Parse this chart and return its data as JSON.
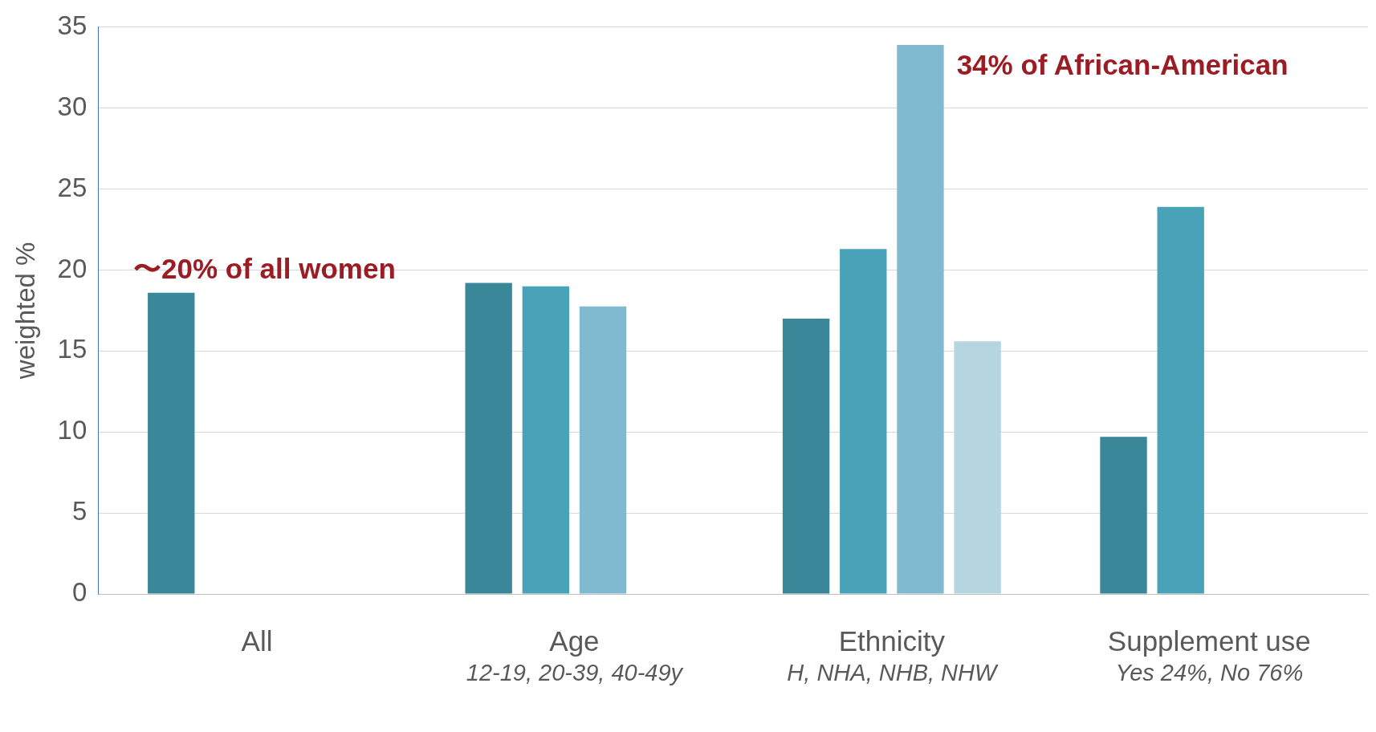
{
  "chart_data": {
    "type": "bar",
    "ylabel": "weighted %",
    "categories": [
      "All",
      "Age",
      "Ethnicity",
      "Supplement use"
    ],
    "series": [
      {
        "color": "#3a8799",
        "values": [
          18.6,
          19.2,
          17.0,
          9.7
        ]
      },
      {
        "color": "#48a3b8",
        "values": [
          null,
          19.0,
          21.3,
          23.9
        ]
      },
      {
        "color": "#7fbad0",
        "values": [
          null,
          17.75,
          33.9,
          null
        ]
      },
      {
        "color": "#b5d5e0",
        "values": [
          null,
          null,
          15.6,
          null
        ]
      }
    ],
    "ylim": [
      0,
      35
    ],
    "yticks": [
      0,
      5,
      10,
      15,
      20,
      25,
      30,
      35
    ],
    "grid": "y",
    "legend": false,
    "annotations": [
      "〜20% of all women",
      "34% of African-American",
      "12-19, 20-39, 40-49y",
      "H, NHA, NHB, NHW",
      "Yes 24%, No 76%"
    ]
  }
}
